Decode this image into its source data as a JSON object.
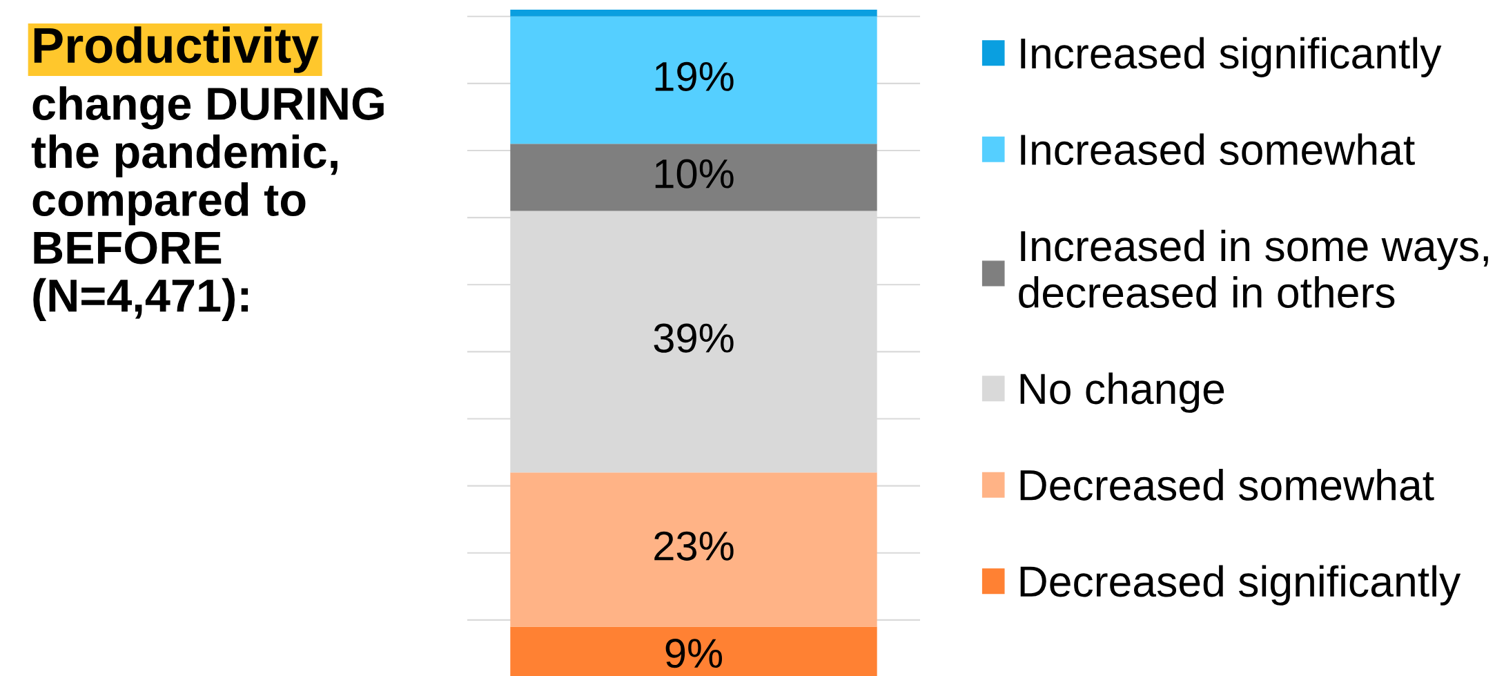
{
  "chart_data": {
    "type": "bar",
    "stacked": true,
    "title": "Productivity change DURING the pandemic, compared to BEFORE (N=4,471):",
    "categories": [
      null
    ],
    "series": [
      {
        "name": "Decreased significantly",
        "color": "#ff8133",
        "values": [
          9
        ],
        "value_labels": [
          "9%"
        ]
      },
      {
        "name": "Decreased somewhat",
        "color": "#ffb386",
        "values": [
          23
        ],
        "value_labels": [
          "23%"
        ]
      },
      {
        "name": "No change",
        "color": "#d9d9d9",
        "values": [
          39
        ],
        "value_labels": [
          "39%"
        ]
      },
      {
        "name": "Increased in some ways, decreased in others",
        "color": "#7f7f7f",
        "values": [
          10
        ],
        "value_labels": [
          "10%"
        ]
      },
      {
        "name": "Increased somewhat",
        "color": "#55cfff",
        "values": [
          19
        ],
        "value_labels": [
          "19%"
        ]
      },
      {
        "name": "Increased significantly",
        "color": "#0a9fe0",
        "values": [
          1
        ],
        "value_labels": [
          null
        ]
      }
    ],
    "ylim": [
      0,
      101
    ],
    "yticks": [
      {
        "value": 10,
        "label": null
      },
      {
        "value": 20,
        "label": null
      },
      {
        "value": 30,
        "label": null
      },
      {
        "value": 40,
        "label": null
      },
      {
        "value": 50,
        "label": null
      },
      {
        "value": 60,
        "label": null
      },
      {
        "value": 70,
        "label": null
      },
      {
        "value": 80,
        "label": null
      },
      {
        "value": 90,
        "label": null
      },
      {
        "value": 100,
        "label": null
      }
    ],
    "grid": "y",
    "legend": "right"
  }
}
